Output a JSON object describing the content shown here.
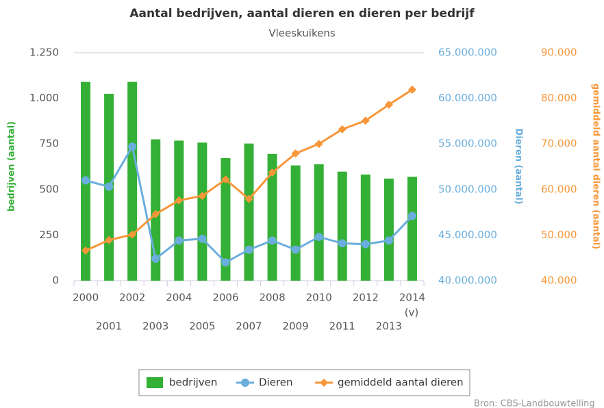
{
  "chart_data": {
    "type": "combo",
    "title": "Aantal bedrijven, aantal dieren en dieren per bedrijf",
    "subtitle": "Vleeskuikens",
    "source": "Bron: CBS-Landbouwtelling",
    "annotations": [
      "(v)"
    ],
    "ylabel": "bedrijven (aantal)",
    "y2label": "Dieren (aantal)",
    "y3label": "gemiddeld aantal dieren (aantal)",
    "categories": [
      "2000",
      "2001",
      "2002",
      "2003",
      "2004",
      "2005",
      "2006",
      "2007",
      "2008",
      "2009",
      "2010",
      "2011",
      "2012",
      "2013",
      "2014"
    ],
    "ylim": [
      0,
      1250
    ],
    "yticks": [
      0,
      250,
      500,
      750,
      {
        "value": 1000,
        "label": "1.000"
      },
      {
        "value": 1250,
        "label": "1.250"
      }
    ],
    "y2lim": [
      40000000,
      65000000
    ],
    "y2ticks": [
      {
        "value": 40000000,
        "label": "40.000.000"
      },
      {
        "value": 45000000,
        "label": "45.000.000"
      },
      {
        "value": 50000000,
        "label": "50.000.000"
      },
      {
        "value": 55000000,
        "label": "55.000.000"
      },
      {
        "value": 60000000,
        "label": "60.000.000"
      },
      {
        "value": 65000000,
        "label": "65.000.000"
      }
    ],
    "y3lim": [
      40000,
      90000
    ],
    "y3ticks": [
      {
        "value": 40000,
        "label": "40.000"
      },
      {
        "value": 50000,
        "label": "50.000"
      },
      {
        "value": 60000,
        "label": "60.000"
      },
      {
        "value": 70000,
        "label": "70.000"
      },
      {
        "value": 80000,
        "label": "80.000"
      },
      {
        "value": 90000,
        "label": "90.000"
      }
    ],
    "grid": false,
    "legend": "bottom",
    "series": [
      {
        "name": "bedrijven",
        "type": "bar",
        "color": "#33b035",
        "values": [
          1090,
          1025,
          1090,
          775,
          768,
          757,
          672,
          752,
          695,
          632,
          638,
          598,
          582,
          560,
          570
        ]
      },
      {
        "name": "Dieren",
        "type": "line",
        "axis": "y2",
        "marker": "circle",
        "color": "#6aaedd",
        "values": [
          51000000,
          50300000,
          54700000,
          42400000,
          44400000,
          44600000,
          42000000,
          43400000,
          44400000,
          43400000,
          44800000,
          44100000,
          44000000,
          44400000,
          47100000
        ]
      },
      {
        "name": "gemiddeld aantal dieren",
        "type": "line",
        "axis": "y3",
        "marker": "diamond",
        "color": "#f7973a",
        "values": [
          46600,
          48900,
          50100,
          54600,
          57600,
          58600,
          62200,
          57900,
          63700,
          67900,
          70000,
          73200,
          75100,
          78600,
          81900
        ]
      }
    ]
  }
}
